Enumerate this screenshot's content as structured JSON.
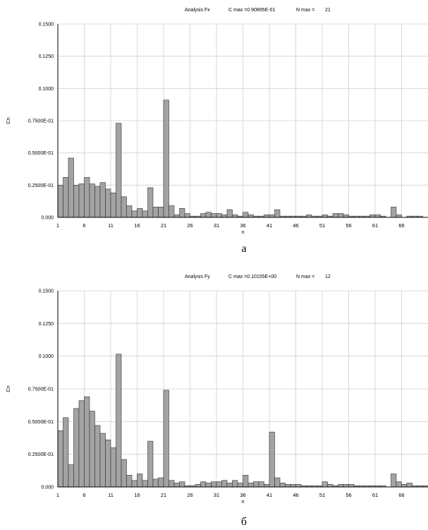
{
  "chart_data": [
    {
      "type": "bar",
      "title": "Analysis Fx",
      "cmax_text": "C max =0.90895E-01",
      "nmax_text": "N max =",
      "nmax_value": "21",
      "xlabel": "n",
      "ylabel": "Cn",
      "caption": "а",
      "ylim": [
        0,
        0.15
      ],
      "yticks": [
        0.0,
        0.025,
        0.05,
        0.075,
        0.1,
        0.125,
        0.15
      ],
      "ytick_labels": [
        "0.000",
        "0.2500E-01",
        "0.5000E-01",
        "0.7500E-01",
        "0.1000",
        "0.1250",
        "0.1500"
      ],
      "xlim": [
        1,
        71
      ],
      "xticks": [
        1,
        6,
        11,
        16,
        21,
        26,
        31,
        36,
        41,
        46,
        51,
        56,
        61,
        66
      ],
      "grid": true,
      "x": [
        1,
        2,
        3,
        4,
        5,
        6,
        7,
        8,
        9,
        10,
        11,
        12,
        13,
        14,
        15,
        16,
        17,
        18,
        19,
        20,
        21,
        22,
        23,
        24,
        25,
        26,
        27,
        28,
        29,
        30,
        31,
        32,
        33,
        34,
        35,
        36,
        37,
        38,
        39,
        40,
        41,
        42,
        43,
        44,
        45,
        46,
        47,
        48,
        49,
        50,
        51,
        52,
        53,
        54,
        55,
        56,
        57,
        58,
        59,
        60,
        61,
        62,
        63,
        64,
        65,
        66,
        67,
        68,
        69,
        70
      ],
      "values": [
        0.025,
        0.031,
        0.046,
        0.025,
        0.026,
        0.031,
        0.026,
        0.024,
        0.027,
        0.022,
        0.019,
        0.073,
        0.016,
        0.009,
        0.005,
        0.007,
        0.005,
        0.023,
        0.008,
        0.008,
        0.091,
        0.009,
        0.002,
        0.007,
        0.003,
        0.001,
        0.001,
        0.003,
        0.004,
        0.003,
        0.003,
        0.002,
        0.006,
        0.002,
        0.001,
        0.004,
        0.002,
        0.001,
        0.001,
        0.002,
        0.002,
        0.006,
        0.001,
        0.001,
        0.001,
        0.001,
        0.001,
        0.002,
        0.001,
        0.001,
        0.002,
        0.001,
        0.003,
        0.003,
        0.002,
        0.001,
        0.001,
        0.001,
        0.001,
        0.002,
        0.002,
        0.001,
        0.0,
        0.008,
        0.002,
        0.0,
        0.001,
        0.001,
        0.001,
        0.0
      ]
    },
    {
      "type": "bar",
      "title": "Analysis Fy",
      "cmax_text": "C max =0.10155E+00",
      "nmax_text": "N max =",
      "nmax_value": "12",
      "xlabel": "n",
      "ylabel": "Cn",
      "caption": "б",
      "ylim": [
        0,
        0.15
      ],
      "yticks": [
        0.0,
        0.025,
        0.05,
        0.075,
        0.1,
        0.125,
        0.15
      ],
      "ytick_labels": [
        "0.000",
        "0.2500E-01",
        "0.5000E-01",
        "0.7500E-01",
        "0.1000",
        "0.1250",
        "0.1500"
      ],
      "xlim": [
        1,
        71
      ],
      "xticks": [
        1,
        6,
        11,
        16,
        21,
        26,
        31,
        36,
        41,
        46,
        51,
        56,
        61,
        66
      ],
      "grid": true,
      "x": [
        1,
        2,
        3,
        4,
        5,
        6,
        7,
        8,
        9,
        10,
        11,
        12,
        13,
        14,
        15,
        16,
        17,
        18,
        19,
        20,
        21,
        22,
        23,
        24,
        25,
        26,
        27,
        28,
        29,
        30,
        31,
        32,
        33,
        34,
        35,
        36,
        37,
        38,
        39,
        40,
        41,
        42,
        43,
        44,
        45,
        46,
        47,
        48,
        49,
        50,
        51,
        52,
        53,
        54,
        55,
        56,
        57,
        58,
        59,
        60,
        61,
        62,
        63,
        64,
        65,
        66,
        67,
        68,
        69,
        70
      ],
      "values": [
        0.043,
        0.053,
        0.017,
        0.06,
        0.066,
        0.069,
        0.058,
        0.047,
        0.041,
        0.036,
        0.03,
        0.1015,
        0.021,
        0.009,
        0.005,
        0.01,
        0.005,
        0.035,
        0.006,
        0.007,
        0.074,
        0.005,
        0.003,
        0.004,
        0.001,
        0.001,
        0.002,
        0.004,
        0.003,
        0.004,
        0.004,
        0.005,
        0.003,
        0.005,
        0.003,
        0.009,
        0.003,
        0.004,
        0.004,
        0.002,
        0.042,
        0.007,
        0.003,
        0.002,
        0.002,
        0.002,
        0.001,
        0.001,
        0.001,
        0.001,
        0.004,
        0.002,
        0.001,
        0.002,
        0.002,
        0.002,
        0.001,
        0.001,
        0.001,
        0.001,
        0.001,
        0.001,
        0.0,
        0.01,
        0.004,
        0.002,
        0.003,
        0.001,
        0.001,
        0.001
      ]
    }
  ]
}
